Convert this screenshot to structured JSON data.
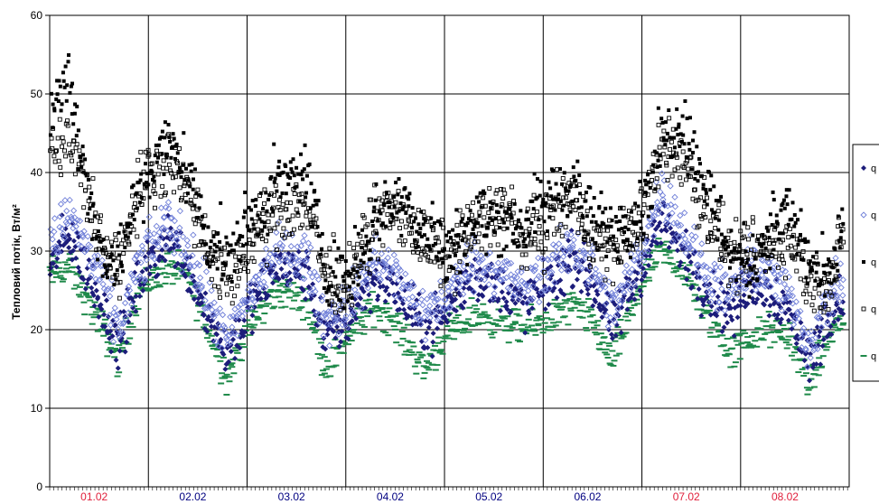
{
  "chart_data": {
    "type": "scatter",
    "title": "",
    "ylabel": "Тепловий потік, Вт/м²",
    "xlabel": "",
    "ylim": [
      0,
      60
    ],
    "yticks": [
      "0",
      "10",
      "20",
      "30",
      "40",
      "50",
      "60"
    ],
    "grid": true,
    "legend_position": "right",
    "categories": [
      {
        "label": "01.02",
        "color": "#e0203c"
      },
      {
        "label": "02.02",
        "color": "#000080"
      },
      {
        "label": "03.02",
        "color": "#000080"
      },
      {
        "label": "04.02",
        "color": "#000080"
      },
      {
        "label": "05.02",
        "color": "#000080"
      },
      {
        "label": "06.02",
        "color": "#000080"
      },
      {
        "label": "07.02",
        "color": "#e0203c"
      },
      {
        "label": "08.02",
        "color": "#e0203c"
      }
    ],
    "series": [
      {
        "legend_label": "q",
        "marker": "filled-diamond",
        "color": "#1c1c7a",
        "profile": [
          [
            0,
            28
          ],
          [
            0.2,
            32
          ],
          [
            0.5,
            24
          ],
          [
            0.7,
            18
          ],
          [
            0.9,
            26
          ],
          [
            1.2,
            32
          ],
          [
            1.4,
            28
          ],
          [
            1.6,
            22
          ],
          [
            1.8,
            17
          ],
          [
            2.0,
            22
          ],
          [
            2.3,
            28
          ],
          [
            2.6,
            27
          ],
          [
            2.8,
            19
          ],
          [
            3.0,
            21
          ],
          [
            3.3,
            27
          ],
          [
            3.5,
            25
          ],
          [
            3.8,
            20
          ],
          [
            4.0,
            22
          ],
          [
            4.3,
            27
          ],
          [
            4.6,
            25
          ],
          [
            4.8,
            23
          ],
          [
            5.0,
            25
          ],
          [
            5.3,
            29
          ],
          [
            5.5,
            26
          ],
          [
            5.7,
            20
          ],
          [
            6.0,
            28
          ],
          [
            6.2,
            34
          ],
          [
            6.4,
            30
          ],
          [
            6.6,
            26
          ],
          [
            6.9,
            22
          ],
          [
            7.1,
            26
          ],
          [
            7.3,
            25
          ],
          [
            7.5,
            22
          ],
          [
            7.7,
            16
          ],
          [
            7.9,
            22
          ],
          [
            8.1,
            25
          ]
        ]
      },
      {
        "legend_label": "q",
        "marker": "open-diamond",
        "color": "#6f7fd8",
        "profile": [
          [
            0,
            30
          ],
          [
            0.2,
            35
          ],
          [
            0.5,
            27
          ],
          [
            0.7,
            20
          ],
          [
            0.9,
            28
          ],
          [
            1.2,
            34
          ],
          [
            1.4,
            30
          ],
          [
            1.6,
            24
          ],
          [
            1.8,
            18
          ],
          [
            2.0,
            24
          ],
          [
            2.3,
            30
          ],
          [
            2.6,
            29
          ],
          [
            2.8,
            21
          ],
          [
            3.0,
            23
          ],
          [
            3.3,
            29
          ],
          [
            3.5,
            27
          ],
          [
            3.8,
            22
          ],
          [
            4.0,
            24
          ],
          [
            4.3,
            29
          ],
          [
            4.6,
            27
          ],
          [
            4.8,
            25
          ],
          [
            5.0,
            27
          ],
          [
            5.3,
            31
          ],
          [
            5.5,
            28
          ],
          [
            5.7,
            22
          ],
          [
            6.0,
            30
          ],
          [
            6.2,
            38
          ],
          [
            6.4,
            33
          ],
          [
            6.6,
            28
          ],
          [
            6.9,
            24
          ],
          [
            7.1,
            28
          ],
          [
            7.3,
            27
          ],
          [
            7.5,
            24
          ],
          [
            7.7,
            18
          ],
          [
            7.9,
            24
          ],
          [
            8.1,
            27
          ]
        ]
      },
      {
        "legend_label": "q",
        "marker": "filled-square",
        "color": "#000000",
        "profile": [
          [
            0,
            48
          ],
          [
            0.2,
            52
          ],
          [
            0.5,
            30
          ],
          [
            0.7,
            29
          ],
          [
            0.9,
            37
          ],
          [
            1.2,
            44
          ],
          [
            1.4,
            40
          ],
          [
            1.6,
            32
          ],
          [
            1.8,
            29
          ],
          [
            2.0,
            33
          ],
          [
            2.3,
            38
          ],
          [
            2.6,
            40
          ],
          [
            2.8,
            28
          ],
          [
            3.0,
            26
          ],
          [
            3.3,
            34
          ],
          [
            3.5,
            37
          ],
          [
            3.8,
            33
          ],
          [
            4.0,
            30
          ],
          [
            4.3,
            34
          ],
          [
            4.6,
            34
          ],
          [
            4.8,
            33
          ],
          [
            5.0,
            36
          ],
          [
            5.3,
            39
          ],
          [
            5.5,
            33
          ],
          [
            5.7,
            33
          ],
          [
            6.0,
            35
          ],
          [
            6.2,
            44
          ],
          [
            6.4,
            47
          ],
          [
            6.6,
            40
          ],
          [
            6.9,
            30
          ],
          [
            7.1,
            28
          ],
          [
            7.3,
            33
          ],
          [
            7.5,
            35
          ],
          [
            7.7,
            28
          ],
          [
            7.9,
            26
          ],
          [
            8.1,
            37
          ]
        ]
      },
      {
        "legend_label": "q",
        "marker": "open-square",
        "color": "#000000",
        "profile": [
          [
            0,
            42
          ],
          [
            0.2,
            44
          ],
          [
            0.5,
            32
          ],
          [
            0.7,
            28
          ],
          [
            0.9,
            38
          ],
          [
            1.2,
            42
          ],
          [
            1.4,
            38
          ],
          [
            1.6,
            30
          ],
          [
            1.8,
            26
          ],
          [
            2.0,
            30
          ],
          [
            2.3,
            35
          ],
          [
            2.6,
            36
          ],
          [
            2.8,
            27
          ],
          [
            3.0,
            26
          ],
          [
            3.3,
            34
          ],
          [
            3.5,
            35
          ],
          [
            3.8,
            31
          ],
          [
            4.0,
            29
          ],
          [
            4.3,
            33
          ],
          [
            4.6,
            36
          ],
          [
            4.8,
            31
          ],
          [
            5.0,
            33
          ],
          [
            5.3,
            37
          ],
          [
            5.5,
            31
          ],
          [
            5.7,
            30
          ],
          [
            6.0,
            34
          ],
          [
            6.2,
            43
          ],
          [
            6.4,
            42
          ],
          [
            6.6,
            36
          ],
          [
            6.9,
            29
          ],
          [
            7.1,
            29
          ],
          [
            7.3,
            31
          ],
          [
            7.5,
            31
          ],
          [
            7.7,
            26
          ],
          [
            7.9,
            26
          ],
          [
            8.1,
            34
          ]
        ]
      },
      {
        "legend_label": "q",
        "marker": "dash",
        "color": "#1f8a4a",
        "profile": [
          [
            0,
            27
          ],
          [
            0.2,
            28
          ],
          [
            0.5,
            21
          ],
          [
            0.7,
            16
          ],
          [
            0.9,
            25
          ],
          [
            1.2,
            28
          ],
          [
            1.4,
            27
          ],
          [
            1.6,
            20
          ],
          [
            1.8,
            14
          ],
          [
            2.0,
            20
          ],
          [
            2.3,
            25
          ],
          [
            2.6,
            24
          ],
          [
            2.8,
            15
          ],
          [
            3.0,
            19
          ],
          [
            3.3,
            23
          ],
          [
            3.5,
            21
          ],
          [
            3.8,
            15
          ],
          [
            4.0,
            19
          ],
          [
            4.3,
            22
          ],
          [
            4.6,
            21
          ],
          [
            4.8,
            20
          ],
          [
            5.0,
            21
          ],
          [
            5.3,
            23
          ],
          [
            5.5,
            21
          ],
          [
            5.7,
            16
          ],
          [
            6.0,
            26
          ],
          [
            6.2,
            30
          ],
          [
            6.4,
            28
          ],
          [
            6.6,
            23
          ],
          [
            6.9,
            17
          ],
          [
            7.1,
            19
          ],
          [
            7.3,
            20
          ],
          [
            7.5,
            19
          ],
          [
            7.7,
            13
          ],
          [
            7.9,
            19
          ],
          [
            8.1,
            23
          ]
        ]
      }
    ]
  }
}
